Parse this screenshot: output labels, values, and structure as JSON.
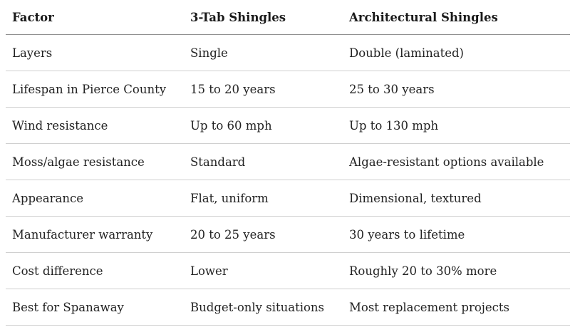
{
  "table": {
    "headers": [
      "Factor",
      "3-Tab Shingles",
      "Architectural Shingles"
    ],
    "rows": [
      [
        "Layers",
        "Single",
        "Double (laminated)"
      ],
      [
        "Lifespan in Pierce County",
        "15 to 20 years",
        "25 to 30 years"
      ],
      [
        "Wind resistance",
        "Up to 60 mph",
        "Up to 130 mph"
      ],
      [
        "Moss/algae resistance",
        "Standard",
        "Algae-resistant options available"
      ],
      [
        "Appearance",
        "Flat, uniform",
        "Dimensional, textured"
      ],
      [
        "Manufacturer warranty",
        "20 to 25 years",
        "30 years to lifetime"
      ],
      [
        "Cost difference",
        "Lower",
        "Roughly 20 to 30% more"
      ],
      [
        "Best for Spanaway",
        "Budget-only situations",
        "Most replacement projects"
      ]
    ]
  }
}
